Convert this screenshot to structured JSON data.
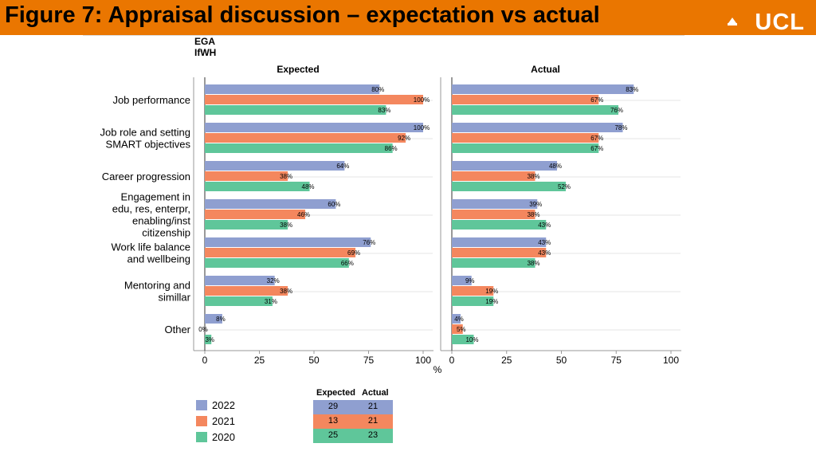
{
  "header": {
    "title": "Figure 7: Appraisal discussion – expectation vs actual",
    "logo": "UCL",
    "bar_color": "#ea7600"
  },
  "orgs": [
    "EGA",
    "IfWH"
  ],
  "colors": {
    "2022": "#8f9fd0",
    "2021": "#f4875e",
    "2020": "#5fc69a"
  },
  "chart_data": {
    "type": "bar",
    "orientation": "horizontal",
    "categories": [
      "Job performance",
      "Job role and setting SMART objectives",
      "Career progression",
      "Engagement in edu, res, enterpr, enabling/inst citizenship",
      "Work life balance and wellbeing",
      "Mentoring and simillar",
      "Other"
    ],
    "category_lines": [
      [
        "Job performance"
      ],
      [
        "Job role and setting",
        "SMART objectives"
      ],
      [
        "Career progression"
      ],
      [
        "Engagement in",
        "edu, res, enterpr,",
        "enabling/inst",
        "citizenship"
      ],
      [
        "Work life balance",
        "and wellbeing"
      ],
      [
        "Mentoring and",
        "simillar"
      ],
      [
        "Other"
      ]
    ],
    "panels": [
      {
        "title": "Expected",
        "series": [
          {
            "name": "2022",
            "values": [
              80,
              100,
              64,
              60,
              76,
              32,
              8
            ]
          },
          {
            "name": "2021",
            "values": [
              100,
              92,
              38,
              46,
              69,
              38,
              0
            ]
          },
          {
            "name": "2020",
            "values": [
              83,
              86,
              48,
              38,
              66,
              31,
              3
            ]
          }
        ]
      },
      {
        "title": "Actual",
        "series": [
          {
            "name": "2022",
            "values": [
              83,
              78,
              48,
              39,
              43,
              9,
              4
            ]
          },
          {
            "name": "2021",
            "values": [
              67,
              67,
              38,
              38,
              43,
              19,
              5
            ]
          },
          {
            "name": "2020",
            "values": [
              76,
              67,
              52,
              43,
              38,
              19,
              10
            ]
          }
        ]
      }
    ],
    "xlim": [
      0,
      100
    ],
    "xticks": [
      0,
      25,
      50,
      75,
      100
    ],
    "xlabel": "%",
    "value_suffix": "%",
    "legend": [
      "2022",
      "2021",
      "2020"
    ],
    "grid": true
  },
  "n_table": {
    "headers": [
      "Expected",
      "Actual"
    ],
    "rows": [
      {
        "year": "2022",
        "expected": "29",
        "actual": "21"
      },
      {
        "year": "2021",
        "expected": "13",
        "actual": "21"
      },
      {
        "year": "2020",
        "expected": "25",
        "actual": "23"
      }
    ]
  }
}
